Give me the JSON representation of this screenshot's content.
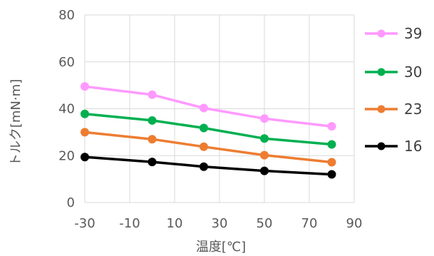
{
  "chart_data": {
    "type": "line",
    "title": "",
    "xlabel": "温度[℃]",
    "ylabel": "トルク[mN·m]",
    "xlim": [
      -30,
      90
    ],
    "ylim": [
      0,
      80
    ],
    "xticks": [
      "-30",
      "-10",
      "10",
      "30",
      "50",
      "70",
      "90"
    ],
    "yticks": [
      "0",
      "20",
      "40",
      "60",
      "80"
    ],
    "grid": true,
    "legend_position": "right",
    "series": [
      {
        "name": "39",
        "color": "#ff99ff",
        "x": [
          -30,
          0,
          23,
          50,
          80
        ],
        "y": [
          49.5,
          46,
          40.3,
          35.8,
          32.5
        ]
      },
      {
        "name": "30",
        "color": "#00b050",
        "x": [
          -30,
          0,
          23,
          50,
          80
        ],
        "y": [
          37.8,
          35,
          31.8,
          27.3,
          24.8
        ]
      },
      {
        "name": "23",
        "color": "#ed7d31",
        "x": [
          -30,
          0,
          23,
          50,
          80
        ],
        "y": [
          30,
          27,
          23.8,
          20.2,
          17.2
        ]
      },
      {
        "name": "16",
        "color": "#000000",
        "x": [
          -30,
          0,
          23,
          50,
          80
        ],
        "y": [
          19.4,
          17.3,
          15.3,
          13.5,
          12
        ]
      }
    ]
  }
}
